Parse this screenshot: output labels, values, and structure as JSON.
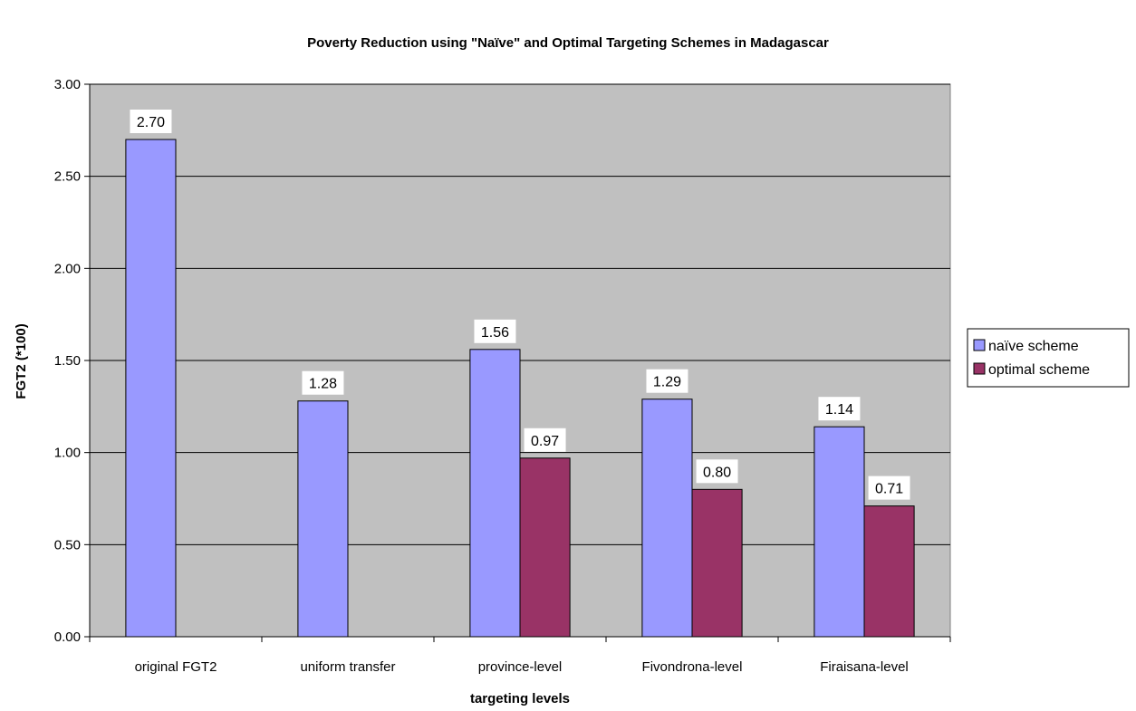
{
  "chart_data": {
    "type": "bar",
    "title": "Poverty Reduction using \"Naïve\" and Optimal Targeting Schemes in Madagascar",
    "xlabel": "targeting levels",
    "ylabel": "FGT2 (*100)",
    "ylim": [
      0,
      3
    ],
    "yticks": [
      "0.00",
      "0.50",
      "1.00",
      "1.50",
      "2.00",
      "2.50",
      "3.00"
    ],
    "ytick_values": [
      0,
      0.5,
      1,
      1.5,
      2,
      2.5,
      3
    ],
    "categories": [
      "original FGT2",
      "uniform transfer",
      "province-level",
      "Fivondrona-level",
      "Firaisana-level"
    ],
    "series": [
      {
        "name": "naïve scheme",
        "color": "#9999ff",
        "values": [
          2.7,
          1.28,
          1.56,
          1.29,
          1.14
        ],
        "labels": [
          "2.70",
          "1.28",
          "1.56",
          "1.29",
          "1.14"
        ]
      },
      {
        "name": "optimal scheme",
        "color": "#993366",
        "values": [
          null,
          null,
          0.97,
          0.8,
          0.71
        ],
        "labels": [
          "",
          "",
          "0.97",
          "0.80",
          "0.71"
        ]
      }
    ],
    "plot_background": "#c0c0c0",
    "grid": true,
    "legend_position": "right"
  }
}
